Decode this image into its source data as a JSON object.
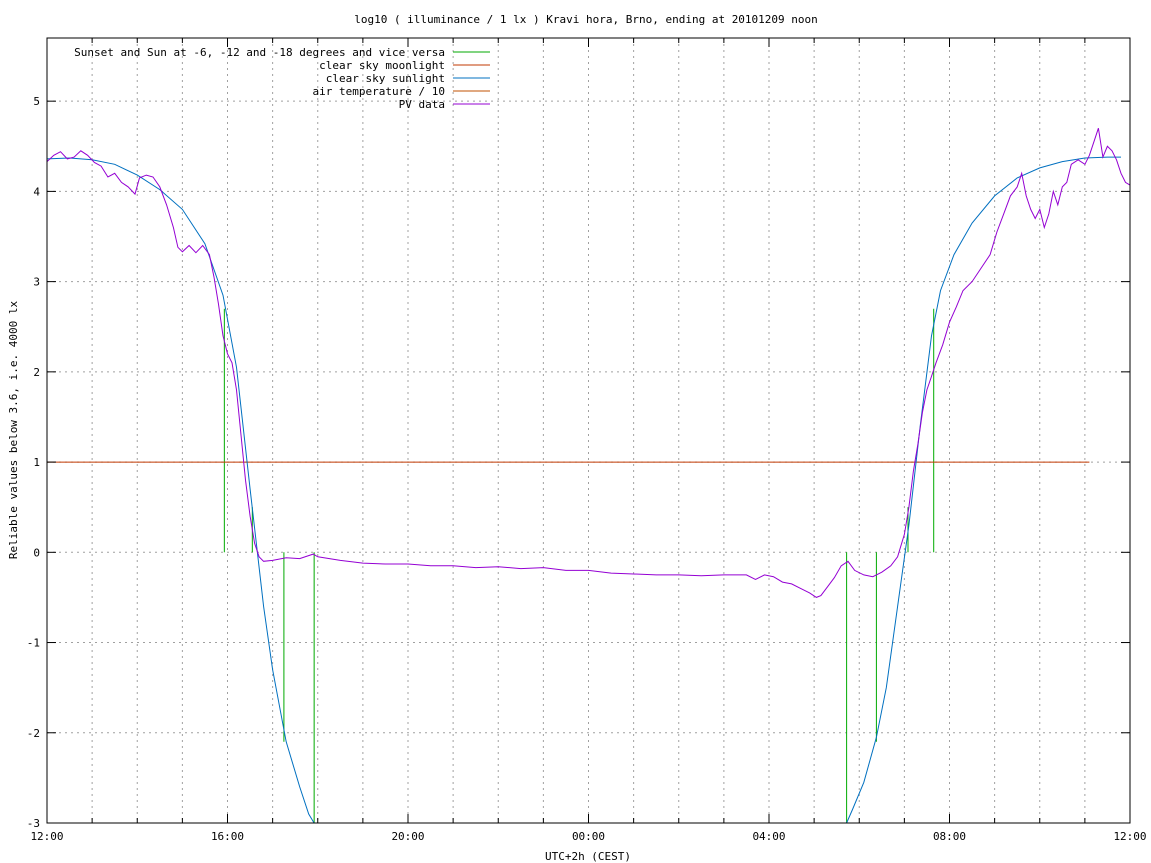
{
  "chart_data": {
    "type": "line",
    "title": "log10 ( illuminance / 1 lx ) Kravi hora, Brno, ending at 20101209 noon",
    "xlabel": "UTC+2h (CEST)",
    "ylabel": "Reliable values below 3.6, i.e. 4000 lx",
    "xlim": [
      12,
      36
    ],
    "ylim": [
      -3,
      5.7
    ],
    "x_ticks": [
      {
        "x": 12,
        "label": "12:00"
      },
      {
        "x": 16,
        "label": "16:00"
      },
      {
        "x": 20,
        "label": "20:00"
      },
      {
        "x": 24,
        "label": "00:00"
      },
      {
        "x": 28,
        "label": "04:00"
      },
      {
        "x": 32,
        "label": "08:00"
      },
      {
        "x": 36,
        "label": "12:00"
      }
    ],
    "x_minor_ticks": [
      13,
      14,
      15,
      17,
      18,
      19,
      21,
      22,
      23,
      25,
      26,
      27,
      29,
      30,
      31,
      33,
      34,
      35
    ],
    "y_ticks": [
      {
        "y": -3,
        "label": "-3"
      },
      {
        "y": -2,
        "label": "-2"
      },
      {
        "y": -1,
        "label": "-1"
      },
      {
        "y": 0,
        "label": "0"
      },
      {
        "y": 1,
        "label": "1"
      },
      {
        "y": 2,
        "label": "2"
      },
      {
        "y": 3,
        "label": "3"
      },
      {
        "y": 4,
        "label": "4"
      },
      {
        "y": 5,
        "label": "5"
      }
    ],
    "grid": true,
    "legend_position": "top-left",
    "series": [
      {
        "name": "Sunset and Sun at -6, -12 and -18 degrees and vice versa",
        "color": "#00aa00",
        "kind": "vlines",
        "lines": [
          [
            15.93,
            0,
            2.7
          ],
          [
            16.55,
            0,
            0.5
          ],
          [
            17.25,
            -2.1,
            0
          ],
          [
            17.92,
            -3,
            0
          ],
          [
            29.72,
            -3,
            0
          ],
          [
            30.38,
            -2.1,
            0
          ],
          [
            31.08,
            0,
            0.5
          ],
          [
            31.65,
            0,
            2.7
          ]
        ]
      },
      {
        "name": "clear sky moonlight",
        "color": "#c03800",
        "kind": "line",
        "points": [
          [
            12,
            1
          ],
          [
            35.1,
            1
          ]
        ]
      },
      {
        "name": "clear sky sunlight",
        "color": "#0070c0",
        "kind": "line",
        "points": [
          [
            12,
            4.36
          ],
          [
            12.5,
            4.37
          ],
          [
            13,
            4.35
          ],
          [
            13.5,
            4.3
          ],
          [
            14,
            4.18
          ],
          [
            14.5,
            4.02
          ],
          [
            15,
            3.8
          ],
          [
            15.5,
            3.42
          ],
          [
            15.9,
            2.85
          ],
          [
            16.2,
            2.05
          ],
          [
            16.5,
            0.7
          ],
          [
            16.8,
            -0.6
          ],
          [
            17.0,
            -1.3
          ],
          [
            17.3,
            -2.1
          ],
          [
            17.6,
            -2.6
          ],
          [
            17.8,
            -2.9
          ],
          [
            17.92,
            -3
          ],
          [
            29.72,
            -3
          ],
          [
            29.85,
            -2.85
          ],
          [
            30.1,
            -2.55
          ],
          [
            30.38,
            -2.05
          ],
          [
            30.6,
            -1.5
          ],
          [
            30.85,
            -0.6
          ],
          [
            31.1,
            0.3
          ],
          [
            31.35,
            1.4
          ],
          [
            31.6,
            2.4
          ],
          [
            31.8,
            2.9
          ],
          [
            32.1,
            3.3
          ],
          [
            32.5,
            3.65
          ],
          [
            33,
            3.95
          ],
          [
            33.5,
            4.15
          ],
          [
            34,
            4.26
          ],
          [
            34.5,
            4.33
          ],
          [
            35,
            4.37
          ],
          [
            35.5,
            4.38
          ],
          [
            35.8,
            4.38
          ]
        ]
      },
      {
        "name": "air temperature / 10",
        "color": "#c05000",
        "kind": "line",
        "points": []
      },
      {
        "name": "PV data",
        "color": "#9400d3",
        "kind": "line",
        "points": [
          [
            12,
            4.33
          ],
          [
            12.15,
            4.4
          ],
          [
            12.3,
            4.44
          ],
          [
            12.45,
            4.36
          ],
          [
            12.6,
            4.38
          ],
          [
            12.75,
            4.45
          ],
          [
            12.9,
            4.4
          ],
          [
            13.05,
            4.32
          ],
          [
            13.2,
            4.28
          ],
          [
            13.35,
            4.16
          ],
          [
            13.5,
            4.2
          ],
          [
            13.65,
            4.1
          ],
          [
            13.8,
            4.05
          ],
          [
            13.95,
            3.97
          ],
          [
            14.05,
            4.15
          ],
          [
            14.2,
            4.18
          ],
          [
            14.35,
            4.16
          ],
          [
            14.5,
            4.05
          ],
          [
            14.65,
            3.85
          ],
          [
            14.8,
            3.6
          ],
          [
            14.9,
            3.38
          ],
          [
            15.0,
            3.33
          ],
          [
            15.15,
            3.4
          ],
          [
            15.3,
            3.32
          ],
          [
            15.45,
            3.4
          ],
          [
            15.6,
            3.3
          ],
          [
            15.7,
            3.05
          ],
          [
            15.8,
            2.75
          ],
          [
            15.9,
            2.4
          ],
          [
            16.0,
            2.2
          ],
          [
            16.1,
            2.1
          ],
          [
            16.2,
            1.8
          ],
          [
            16.3,
            1.3
          ],
          [
            16.4,
            0.8
          ],
          [
            16.5,
            0.4
          ],
          [
            16.6,
            0.1
          ],
          [
            16.7,
            -0.05
          ],
          [
            16.8,
            -0.1
          ],
          [
            17.0,
            -0.09
          ],
          [
            17.3,
            -0.06
          ],
          [
            17.6,
            -0.07
          ],
          [
            17.9,
            -0.02
          ],
          [
            18.0,
            -0.05
          ],
          [
            18.5,
            -0.09
          ],
          [
            19.0,
            -0.12
          ],
          [
            19.5,
            -0.13
          ],
          [
            20.0,
            -0.13
          ],
          [
            20.5,
            -0.15
          ],
          [
            21.0,
            -0.15
          ],
          [
            21.5,
            -0.17
          ],
          [
            22.0,
            -0.16
          ],
          [
            22.5,
            -0.18
          ],
          [
            23.0,
            -0.17
          ],
          [
            23.5,
            -0.2
          ],
          [
            24.0,
            -0.2
          ],
          [
            24.5,
            -0.23
          ],
          [
            25.0,
            -0.24
          ],
          [
            25.5,
            -0.25
          ],
          [
            26.0,
            -0.25
          ],
          [
            26.5,
            -0.26
          ],
          [
            27.0,
            -0.25
          ],
          [
            27.5,
            -0.25
          ],
          [
            27.7,
            -0.3
          ],
          [
            27.9,
            -0.25
          ],
          [
            28.1,
            -0.27
          ],
          [
            28.3,
            -0.33
          ],
          [
            28.5,
            -0.35
          ],
          [
            28.7,
            -0.4
          ],
          [
            28.9,
            -0.45
          ],
          [
            29.05,
            -0.5
          ],
          [
            29.15,
            -0.48
          ],
          [
            29.3,
            -0.38
          ],
          [
            29.45,
            -0.28
          ],
          [
            29.6,
            -0.15
          ],
          [
            29.75,
            -0.1
          ],
          [
            29.9,
            -0.2
          ],
          [
            30.1,
            -0.25
          ],
          [
            30.3,
            -0.27
          ],
          [
            30.5,
            -0.22
          ],
          [
            30.7,
            -0.15
          ],
          [
            30.85,
            -0.05
          ],
          [
            31.0,
            0.2
          ],
          [
            31.1,
            0.5
          ],
          [
            31.2,
            0.9
          ],
          [
            31.3,
            1.2
          ],
          [
            31.4,
            1.55
          ],
          [
            31.5,
            1.8
          ],
          [
            31.6,
            1.95
          ],
          [
            31.7,
            2.1
          ],
          [
            31.85,
            2.3
          ],
          [
            32.0,
            2.55
          ],
          [
            32.15,
            2.72
          ],
          [
            32.3,
            2.9
          ],
          [
            32.5,
            3.0
          ],
          [
            32.7,
            3.15
          ],
          [
            32.9,
            3.3
          ],
          [
            33.05,
            3.55
          ],
          [
            33.2,
            3.75
          ],
          [
            33.35,
            3.95
          ],
          [
            33.5,
            4.05
          ],
          [
            33.6,
            4.2
          ],
          [
            33.7,
            3.95
          ],
          [
            33.8,
            3.8
          ],
          [
            33.9,
            3.7
          ],
          [
            34.0,
            3.8
          ],
          [
            34.1,
            3.6
          ],
          [
            34.2,
            3.75
          ],
          [
            34.3,
            4.0
          ],
          [
            34.4,
            3.85
          ],
          [
            34.5,
            4.05
          ],
          [
            34.6,
            4.1
          ],
          [
            34.7,
            4.3
          ],
          [
            34.85,
            4.35
          ],
          [
            35.0,
            4.3
          ],
          [
            35.1,
            4.4
          ],
          [
            35.2,
            4.55
          ],
          [
            35.3,
            4.7
          ],
          [
            35.4,
            4.38
          ],
          [
            35.5,
            4.5
          ],
          [
            35.6,
            4.45
          ],
          [
            35.7,
            4.35
          ],
          [
            35.8,
            4.2
          ],
          [
            35.9,
            4.1
          ],
          [
            36.0,
            4.07
          ]
        ]
      }
    ]
  }
}
